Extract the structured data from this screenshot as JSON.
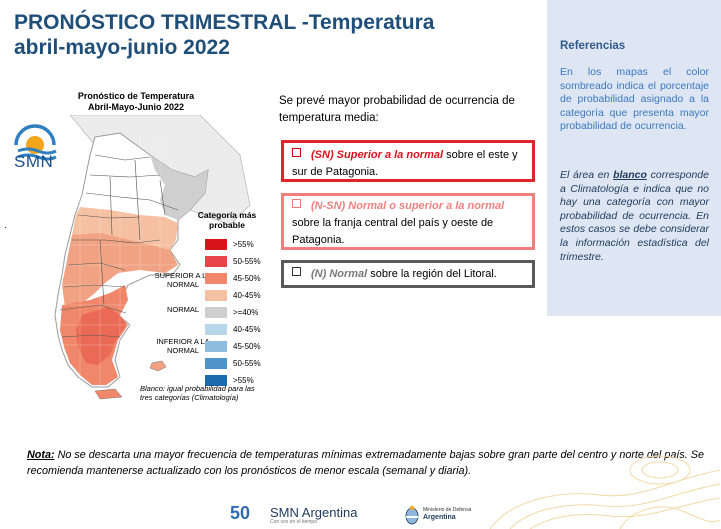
{
  "title": {
    "line1": "PRONÓSTICO TRIMESTRAL -Temperatura",
    "line2": "abril-mayo-junio 2022"
  },
  "map": {
    "heading_line1": "Pronóstico de Temperatura",
    "heading_line2": "Abril-Mayo-Junio 2022",
    "logo_text": "SMN",
    "blank_note": "Blanco: igual probabilidad para las tres categorías (Climatología)"
  },
  "legend": {
    "title_line1": "Categoría más",
    "title_line2": "probable",
    "groups": {
      "superior": "SUPERIOR A LA NORMAL",
      "normal": "NORMAL",
      "inferior": "INFERIOR A LA NORMAL"
    },
    "items": [
      {
        "label": ">55%",
        "color": "#d7141c"
      },
      {
        "label": "50-55%",
        "color": "#e9444a"
      },
      {
        "label": "45-50%",
        "color": "#f0876a"
      },
      {
        "label": "40-45%",
        "color": "#f6c0a2"
      },
      {
        "label": ">=40%",
        "color": "#cfcfcf"
      },
      {
        "label": "40-45%",
        "color": "#b7d6e8"
      },
      {
        "label": "45-50%",
        "color": "#8dbedf"
      },
      {
        "label": "50-55%",
        "color": "#4f94c8"
      },
      {
        "label": ">55%",
        "color": "#1a6bb0"
      }
    ]
  },
  "forecast": {
    "intro": "Se prevé mayor probabilidad de ocurrencia de temperatura media:",
    "box1": {
      "emph": "(SN) Superior a la normal",
      "rest": " sobre el este y sur de Patagonia."
    },
    "box2": {
      "emph": "(N-SN) Normal o superior a la normal",
      "rest": " sobre la franja central del país y oeste de Patagonia."
    },
    "box3": {
      "emph": "(N) Normal",
      "rest": " sobre la región del Litoral."
    }
  },
  "referencias": {
    "title": "Referencias",
    "p1": "En los mapas el color sombreado indica el porcentaje de probabilidad asignado a la categoría que presenta mayor probabilidad de ocurrencia.",
    "p2_pre": "El área en ",
    "p2_blanco": "blanco",
    "p2_post": " corresponde a Climatología e indica que no hay una categoría con mayor probabilidad de ocurrencia. En estos casos se debe considerar la información estadística del trimestre."
  },
  "note": {
    "label": "Nota:",
    "text": " No se descarta una mayor frecuencia de temperaturas mínimas extremadamente bajas sobre gran parte del centro y norte del país.  Se recomienda mantenerse actualizado con los pronósticos de menor escala (semanal y diaria)."
  },
  "footer": {
    "smn_50": "50",
    "smn_name": "SMN Argentina",
    "smn_tagline": "Con vos en el tiempo",
    "ministry_line1": "Ministerio de Defensa",
    "ministry_line2": "Argentina"
  }
}
